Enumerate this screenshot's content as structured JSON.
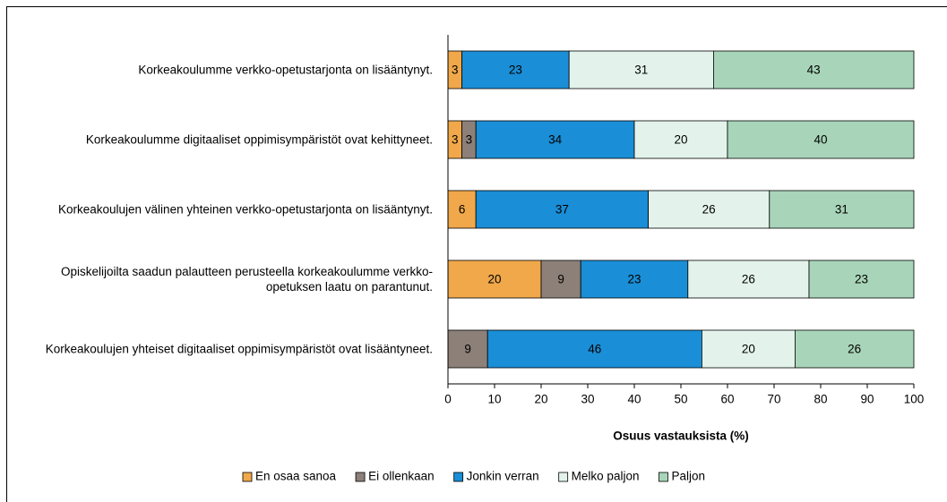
{
  "chart_data": {
    "type": "stacked-barh",
    "categories": [
      "Korkeakoulumme verkko-opetustarjonta on lisääntynyt.",
      "Korkeakoulumme digitaaliset oppimisympäristöt ovat kehittyneet.",
      "Korkeakoulujen välinen yhteinen verkko-opetustarjonta on lisääntynyt.",
      "Opiskelijoilta saadun palautteen perusteella korkeakoulumme verkko-opetuksen laatu on parantunut.",
      "Korkeakoulujen yhteiset digitaaliset oppimisympäristöt ovat lisääntyneet."
    ],
    "series": [
      {
        "name": "En osaa sanoa",
        "color": "#f0a84a",
        "values": [
          3,
          3,
          6,
          20,
          null
        ],
        "value_labels": [
          "3",
          "3",
          "6",
          "20",
          null
        ]
      },
      {
        "name": "Ei ollenkaan",
        "color": "#8c8079",
        "values": [
          null,
          3,
          null,
          8.5,
          8.5
        ],
        "value_labels": [
          null,
          "3",
          null,
          "9",
          "9"
        ]
      },
      {
        "name": "Jonkin verran",
        "color": "#1a8ed6",
        "values": [
          23,
          34,
          37,
          23,
          46
        ],
        "value_labels": [
          "23",
          "34",
          "37",
          "23",
          "46"
        ]
      },
      {
        "name": "Melko paljon",
        "color": "#e3f3ec",
        "values": [
          31,
          20,
          26,
          26,
          20
        ],
        "value_labels": [
          "31",
          "20",
          "26",
          "26",
          "20"
        ]
      },
      {
        "name": "Paljon",
        "color": "#a8d5b9",
        "values": [
          43,
          40,
          31,
          22.5,
          25.5
        ],
        "value_labels": [
          "43",
          "40",
          "31",
          "23",
          "26"
        ]
      }
    ],
    "xlabel": "Osuus vastauksista (%)",
    "xlim": [
      0,
      100
    ],
    "xticks": [
      0,
      10,
      20,
      30,
      40,
      50,
      60,
      70,
      80,
      90,
      100
    ],
    "grid": false,
    "legend": "bottom"
  }
}
